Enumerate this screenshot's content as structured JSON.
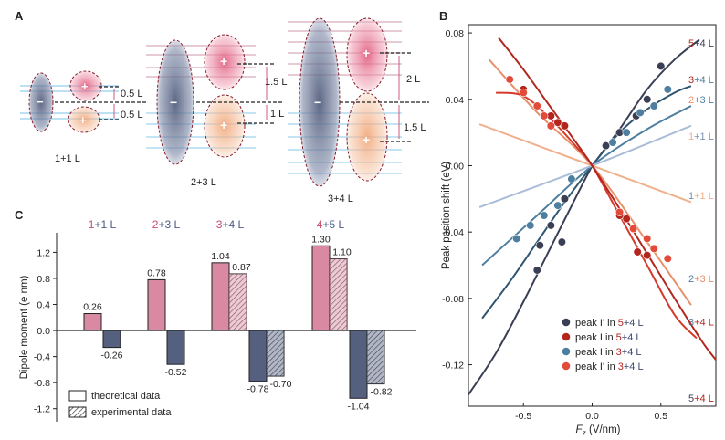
{
  "panel_labels": {
    "a": "A",
    "b": "B",
    "c": "C"
  },
  "colors": {
    "pink": "#d98aa2",
    "navy": "#55607e",
    "bright_red": "#d43a2a",
    "dark_red": "#b3261e",
    "steel_blue": "#4e7fa0",
    "dark_navy": "#3b3f55",
    "light_orange": "#f0b08c",
    "light_blue": "#a9bdd8",
    "dark_teal": "#2f5570"
  },
  "panel_a": {
    "structures": [
      {
        "name": "1+1 L",
        "top": "0.5 L",
        "bottom": "0.5 L"
      },
      {
        "name": "2+3 L",
        "top": "1.5 L",
        "bottom": "1 L"
      },
      {
        "name": "3+4 L",
        "top": "2 L",
        "bottom": "1.5 L"
      }
    ],
    "plus": "+",
    "minus": "−"
  },
  "chart_data": [
    {
      "id": "C",
      "type": "bar",
      "ylabel": "Dipole moment (e nm)",
      "ylim": [
        -1.4,
        1.5
      ],
      "yticks": [
        "-1.2",
        "-0.8",
        "-0.4",
        "0.0",
        "0.4",
        "0.8",
        "1.2"
      ],
      "ytick_values": [
        -1.2,
        -0.8,
        -0.4,
        0.0,
        0.4,
        0.8,
        1.2
      ],
      "groups": [
        {
          "label_a": "1",
          "label_b": "+1 L",
          "theo_pos": 0.26,
          "theo_neg": -0.26,
          "exp_pos": null,
          "exp_neg": null,
          "labels": {
            "theo_pos": "0.26",
            "theo_neg": "-0.26"
          }
        },
        {
          "label_a": "2",
          "label_b": "+3 L",
          "theo_pos": 0.78,
          "theo_neg": -0.52,
          "exp_pos": null,
          "exp_neg": null,
          "labels": {
            "theo_pos": "0.78",
            "theo_neg": "-0.52"
          }
        },
        {
          "label_a": "3",
          "label_b": "+4 L",
          "theo_pos": 1.04,
          "theo_neg": -0.78,
          "exp_pos": 0.87,
          "exp_neg": -0.7,
          "labels": {
            "theo_pos": "1.04",
            "theo_neg": "-0.78",
            "exp_pos": "0.87",
            "exp_neg": "-0.70"
          }
        },
        {
          "label_a": "4",
          "label_b": "+5 L",
          "theo_pos": 1.3,
          "theo_neg": -1.04,
          "exp_pos": 1.1,
          "exp_neg": -0.82,
          "labels": {
            "theo_pos": "1.30",
            "theo_neg": "-1.04",
            "exp_pos": "1.10",
            "exp_neg": "-0.82"
          }
        }
      ],
      "legend": {
        "theoretical": "theoretical data",
        "experimental": "experimental data"
      }
    },
    {
      "id": "B",
      "type": "line",
      "xlabel_f": "F",
      "xlabel_sub": "z",
      "xlabel_unit": " (V/nm)",
      "ylabel": "Peak position  shift (eV)",
      "xlim": [
        -0.9,
        0.9
      ],
      "ylim": [
        -0.145,
        0.085
      ],
      "xticks": [
        "-0.5",
        "0.0",
        "0.5"
      ],
      "xtick_values": [
        -0.5,
        0.0,
        0.5
      ],
      "yticks": [
        "0.08",
        "0.04",
        "0.00",
        "-0.04",
        "-0.08",
        "-0.12"
      ],
      "ytick_values": [
        0.08,
        0.04,
        0.0,
        -0.04,
        -0.08,
        -0.12
      ],
      "lines": [
        {
          "name": "5+4 L neg",
          "color": "#3b3f55",
          "x": [
            0,
            0.2,
            0.4,
            0.6,
            0.78
          ],
          "y": [
            0,
            0.022,
            0.046,
            0.064,
            0.076
          ]
        },
        {
          "name": "5+4 L negL",
          "color": "#3b3f55",
          "x": [
            -0.9,
            -0.7,
            -0.5,
            -0.3,
            -0.1,
            0
          ],
          "y": [
            -0.138,
            -0.113,
            -0.082,
            -0.049,
            -0.016,
            0
          ]
        },
        {
          "name": "3+4 L I",
          "color": "#2f5570",
          "x": [
            -0.8,
            -0.6,
            -0.4,
            -0.2,
            0,
            0.2,
            0.4,
            0.6,
            0.72
          ],
          "y": [
            -0.092,
            -0.07,
            -0.046,
            -0.022,
            0,
            0.02,
            0.034,
            0.044,
            0.048
          ]
        },
        {
          "name": "2+3 L",
          "color": "#4e7fa0",
          "x": [
            -0.8,
            -0.4,
            0,
            0.4,
            0.72
          ],
          "y": [
            -0.06,
            -0.03,
            0,
            0.022,
            0.036
          ]
        },
        {
          "name": "1+1 L",
          "color": "#a9bdd8",
          "x": [
            -0.82,
            0,
            0.72
          ],
          "y": [
            -0.025,
            0,
            0.024
          ]
        },
        {
          "name": "1+1 L r",
          "color": "#f0b08c",
          "x": [
            -0.82,
            0,
            0.72
          ],
          "y": [
            0.025,
            0,
            -0.022
          ]
        },
        {
          "name": "2+3 L r",
          "color": "#e8906a",
          "x": [
            -0.75,
            -0.4,
            0,
            0.4,
            0.72
          ],
          "y": [
            0.064,
            0.032,
            0,
            -0.046,
            -0.084
          ]
        },
        {
          "name": "3+4 L r",
          "color": "#d43a2a",
          "x": [
            -0.7,
            -0.5,
            -0.3,
            -0.1,
            0,
            0.2,
            0.4,
            0.6,
            0.76
          ],
          "y": [
            0.044,
            0.042,
            0.028,
            0.01,
            0,
            -0.03,
            -0.06,
            -0.09,
            -0.104
          ]
        },
        {
          "name": "5+4 L r",
          "color": "#b3261e",
          "x": [
            -0.68,
            -0.5,
            -0.3,
            -0.1,
            0,
            0.2,
            0.4,
            0.6,
            0.8,
            0.9
          ],
          "y": [
            0.077,
            0.058,
            0.035,
            0.012,
            0,
            -0.026,
            -0.053,
            -0.08,
            -0.106,
            -0.117
          ]
        }
      ],
      "scatter": [
        {
          "name": "peak I' in 5+4 L",
          "color": "#3b3f55",
          "x": [
            -0.4,
            -0.38,
            -0.3,
            -0.22,
            -0.2,
            0.1,
            0.2,
            0.32,
            0.4,
            0.5
          ],
          "y": [
            -0.063,
            -0.048,
            -0.036,
            -0.046,
            -0.02,
            0.012,
            0.02,
            0.03,
            0.04,
            0.06
          ]
        },
        {
          "name": "peak I in 5+4 L",
          "color": "#b3261e",
          "x": [
            -0.5,
            -0.4,
            -0.35,
            -0.3,
            -0.25,
            -0.2,
            0.2,
            0.25,
            0.33,
            0.4
          ],
          "y": [
            0.046,
            0.036,
            0.03,
            0.03,
            0.026,
            0.024,
            -0.03,
            -0.032,
            -0.052,
            -0.054
          ]
        },
        {
          "name": "peak I in 3+4 L",
          "color": "#4e7fa0",
          "x": [
            -0.55,
            -0.45,
            -0.35,
            -0.25,
            -0.15,
            0.15,
            0.25,
            0.35,
            0.45,
            0.55
          ],
          "y": [
            -0.044,
            -0.036,
            -0.03,
            -0.024,
            -0.008,
            0.014,
            0.02,
            0.032,
            0.036,
            0.046
          ]
        },
        {
          "name": "peak I' in 3+4 L",
          "color": "#e24a3a",
          "x": [
            -0.6,
            -0.5,
            -0.4,
            -0.35,
            -0.3,
            0.2,
            0.3,
            0.4,
            0.45,
            0.55
          ],
          "y": [
            0.052,
            0.044,
            0.036,
            0.03,
            0.024,
            -0.028,
            -0.038,
            -0.044,
            -0.05,
            -0.056
          ]
        }
      ],
      "right_labels": [
        {
          "a": "5",
          "b": "+4 L",
          "y": 0.074,
          "ca": "#b3261e",
          "cb": "#3b3f55"
        },
        {
          "a": "3",
          "b": "+4 L",
          "y": 0.052,
          "ca": "#b3261e",
          "cb": "#4e7fa0"
        },
        {
          "a": "2",
          "b": "+3 L",
          "y": 0.04,
          "ca": "#e8906a",
          "cb": "#4e7fa0"
        },
        {
          "a": "1",
          "b": "+1 L",
          "y": 0.018,
          "ca": "#f0b08c",
          "cb": "#7a8db0"
        },
        {
          "a": "1",
          "b": "+1 L",
          "y": -0.018,
          "ca": "#7a8db0",
          "cb": "#f0b08c"
        },
        {
          "a": "2",
          "b": "+3 L",
          "y": -0.068,
          "ca": "#4e7fa0",
          "cb": "#e8906a"
        },
        {
          "a": "3",
          "b": "+4 L",
          "y": -0.094,
          "ca": "#4e7fa0",
          "cb": "#b3261e"
        },
        {
          "a": "5",
          "b": "+4 L",
          "y": -0.14,
          "ca": "#3b3f55",
          "cb": "#b3261e"
        }
      ],
      "legend": [
        {
          "pre": "peak I' in ",
          "a": "5",
          "b": "+4 L",
          "color": "#3b3f55"
        },
        {
          "pre": "peak I in ",
          "a": "5",
          "b": "+4 L",
          "color": "#b3261e"
        },
        {
          "pre": "peak I in ",
          "a": "3",
          "b": "+4 L",
          "color": "#4e7fa0"
        },
        {
          "pre": "peak I' in ",
          "a": "3",
          "b": "+4 L",
          "color": "#e24a3a"
        }
      ]
    }
  ]
}
